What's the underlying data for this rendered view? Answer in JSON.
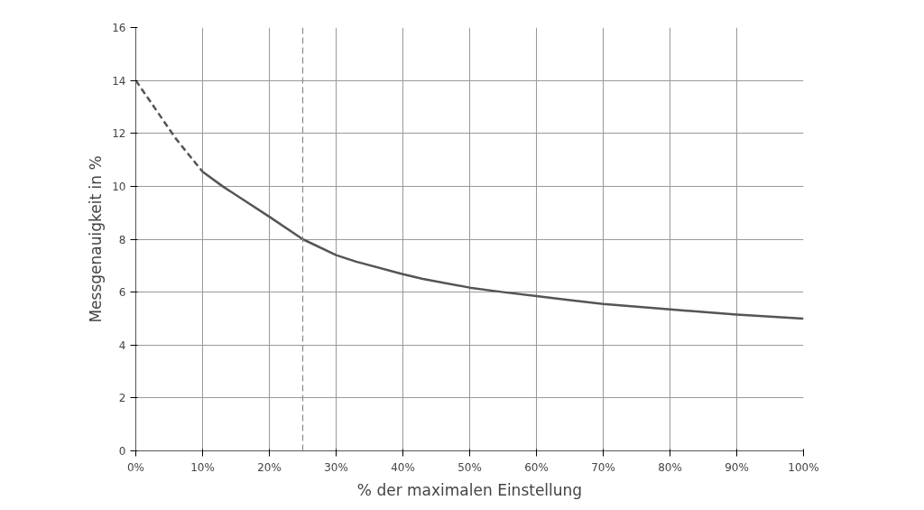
{
  "chart_data": {
    "type": "line",
    "xlabel": "% der maximalen Einstellung",
    "ylabel": "Messgenauigkeit in %",
    "xlim": [
      0,
      100
    ],
    "ylim": [
      0,
      16
    ],
    "xticks": [
      {
        "value": 0,
        "label": "0%"
      },
      {
        "value": 10,
        "label": "10%"
      },
      {
        "value": 20,
        "label": "20%"
      },
      {
        "value": 30,
        "label": "30%"
      },
      {
        "value": 40,
        "label": "40%"
      },
      {
        "value": 50,
        "label": "50%"
      },
      {
        "value": 60,
        "label": "60%"
      },
      {
        "value": 70,
        "label": "70%"
      },
      {
        "value": 80,
        "label": "80%"
      },
      {
        "value": 90,
        "label": "90%"
      },
      {
        "value": 100,
        "label": "100%"
      }
    ],
    "yticks": [
      0,
      2,
      4,
      6,
      8,
      10,
      12,
      14,
      16
    ],
    "grid": true,
    "marker": "none",
    "series": [
      {
        "color": "#555555",
        "line_style": "dashed",
        "x": [
          0,
          3,
          6,
          10
        ],
        "values": [
          14,
          12.9,
          11.8,
          10.55
        ]
      },
      {
        "color": "#555555",
        "line_style": "solid",
        "x": [
          10,
          13,
          20,
          25,
          30,
          33,
          40,
          43,
          50,
          55,
          60,
          65,
          70,
          80,
          90,
          100
        ],
        "values": [
          10.55,
          10.0,
          8.85,
          8.0,
          7.4,
          7.15,
          6.68,
          6.5,
          6.17,
          6.0,
          5.85,
          5.7,
          5.55,
          5.35,
          5.15,
          5.0
        ]
      }
    ],
    "ref_lines": [
      {
        "axis": "x",
        "value": 25,
        "color": "#888888",
        "line_style": "dashed"
      }
    ]
  }
}
